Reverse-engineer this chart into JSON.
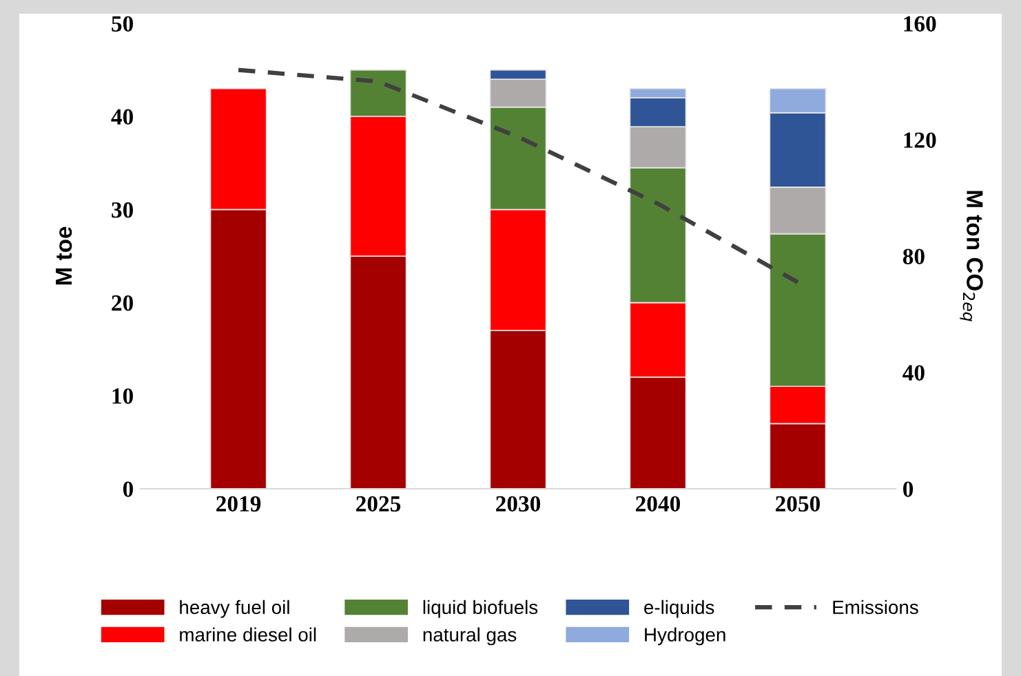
{
  "chart_data": {
    "type": "bar",
    "stacked": true,
    "categories": [
      "2019",
      "2025",
      "2030",
      "2040",
      "2050"
    ],
    "series": [
      {
        "name": "heavy fuel oil",
        "color": "#a50000",
        "values": [
          30,
          25,
          17,
          12,
          7
        ]
      },
      {
        "name": "marine diesel oil",
        "color": "#ff0000",
        "values": [
          13,
          15,
          13,
          8,
          4
        ]
      },
      {
        "name": "liquid biofuels",
        "color": "#548235",
        "values": [
          null,
          5,
          11,
          14.5,
          16.4
        ]
      },
      {
        "name": "natural gas",
        "color": "#aeaaaa",
        "values": [
          null,
          null,
          3,
          4.4,
          5
        ]
      },
      {
        "name": "e-liquids",
        "color": "#2f5597",
        "values": [
          null,
          null,
          1,
          3.1,
          8
        ]
      },
      {
        "name": "Hydrogen",
        "color": "#8faadc",
        "values": [
          null,
          null,
          null,
          1,
          2.6
        ]
      },
      {
        "name": "Emissions",
        "color": "#404040",
        "type": "line",
        "axis": "y2",
        "line_style": "dashed",
        "values": [
          144,
          140,
          121,
          98,
          71
        ]
      }
    ],
    "ylabel": "M toe",
    "y2label": "M ton CO$_{2eq}$",
    "ylim": [
      0,
      50
    ],
    "yticks": [
      0,
      10,
      20,
      30,
      40,
      50
    ],
    "y2lim": [
      0,
      160
    ],
    "y2ticks": [
      0,
      40,
      80,
      120,
      160
    ],
    "legend": "bottom",
    "grid": false
  }
}
